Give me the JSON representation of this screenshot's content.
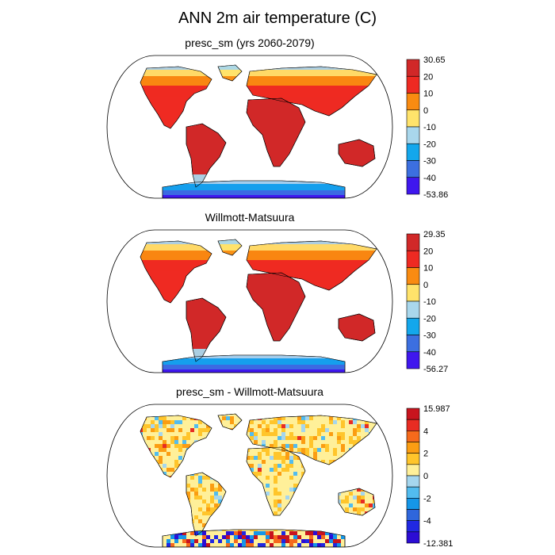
{
  "title": "ANN 2m air temperature (C)",
  "chart_data": [
    {
      "type": "heatmap",
      "title": "presc_sm (yrs 2060-2079)",
      "projection": "robinson world map",
      "colorbar": {
        "labels": [
          "30.65",
          "20",
          "10",
          "0",
          "-10",
          "-20",
          "-30",
          "-40",
          "-53.86"
        ],
        "colors": [
          "#d12828",
          "#ee2a22",
          "#f98b11",
          "#ffe36b",
          "#a9d7ec",
          "#13a7ec",
          "#3c6fe0",
          "#3f17ee"
        ]
      }
    },
    {
      "type": "heatmap",
      "title": "Willmott-Matsuura",
      "projection": "robinson world map",
      "colorbar": {
        "labels": [
          "29.35",
          "20",
          "10",
          "0",
          "-10",
          "-20",
          "-30",
          "-40",
          "-56.27"
        ],
        "colors": [
          "#d12828",
          "#ee2a22",
          "#f98b11",
          "#ffe36b",
          "#a9d7ec",
          "#13a7ec",
          "#3c6fe0",
          "#3f17ee"
        ]
      }
    },
    {
      "type": "heatmap",
      "title": "presc_sm - Willmott-Matsuura",
      "projection": "robinson world map",
      "colorbar": {
        "labels": [
          "15.987",
          "4",
          "2",
          "0",
          "-2",
          "-4",
          "-12.381"
        ],
        "label_slots": [
          0,
          2,
          4,
          6,
          8,
          10,
          12
        ],
        "colors": [
          "#c8141e",
          "#e82c23",
          "#f66a1b",
          "#fb9d12",
          "#ffc52b",
          "#fff099",
          "#a5d6ee",
          "#52bcef",
          "#1596e8",
          "#2f66dc",
          "#2028e2",
          "#2c0dd4"
        ]
      }
    }
  ]
}
